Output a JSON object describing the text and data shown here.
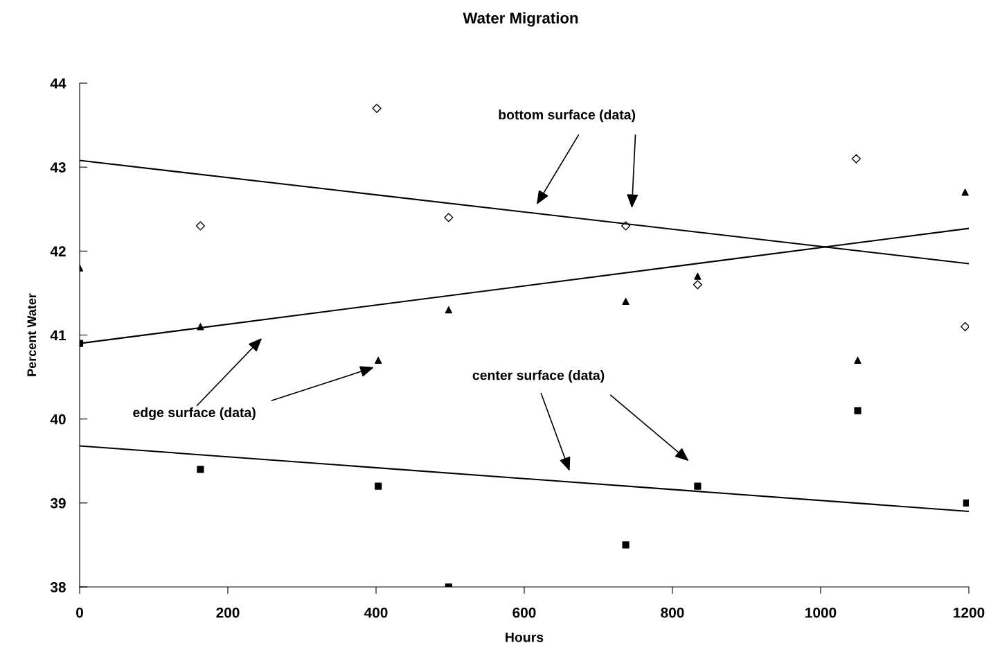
{
  "chart_data": {
    "type": "scatter",
    "title": "Water Migration",
    "xlabel": "Hours",
    "ylabel": "Percent Water",
    "xlim": [
      0,
      1200
    ],
    "xticks": [
      0,
      200,
      400,
      600,
      800,
      1000,
      1200
    ],
    "ylim": [
      38,
      44
    ],
    "yticks": [
      38,
      39,
      40,
      41,
      42,
      43,
      44
    ],
    "grid": false,
    "legend": false,
    "series": [
      {
        "marker": "diamond",
        "color": "#000000",
        "x": [
          163,
          401,
          498,
          737,
          834,
          1048,
          1195
        ],
        "values": [
          42.3,
          43.7,
          42.4,
          42.3,
          41.6,
          43.1,
          41.1
        ]
      },
      {
        "marker": "triangle",
        "color": "#000000",
        "x": [
          0,
          163,
          403,
          498,
          737,
          834,
          1050,
          1195
        ],
        "values": [
          41.8,
          41.1,
          40.7,
          41.3,
          41.4,
          41.7,
          40.7,
          42.7
        ]
      },
      {
        "marker": "square",
        "color": "#000000",
        "x": [
          0,
          163,
          403,
          498,
          737,
          834,
          1050,
          1197
        ],
        "values": [
          40.9,
          39.4,
          39.2,
          38.0,
          38.5,
          39.2,
          40.1,
          39.0
        ]
      },
      {
        "type": "line",
        "color": "#000000",
        "x": [
          0,
          1200
        ],
        "values": [
          43.08,
          41.85
        ]
      },
      {
        "type": "line",
        "color": "#000000",
        "x": [
          0,
          1200
        ],
        "values": [
          40.9,
          42.27
        ]
      },
      {
        "type": "line",
        "color": "#000000",
        "x": [
          0,
          1200
        ],
        "values": [
          39.68,
          38.9
        ]
      }
    ],
    "annotations": [
      "bottom surface (data)",
      "edge surface (data)",
      "center surface (data)"
    ]
  }
}
